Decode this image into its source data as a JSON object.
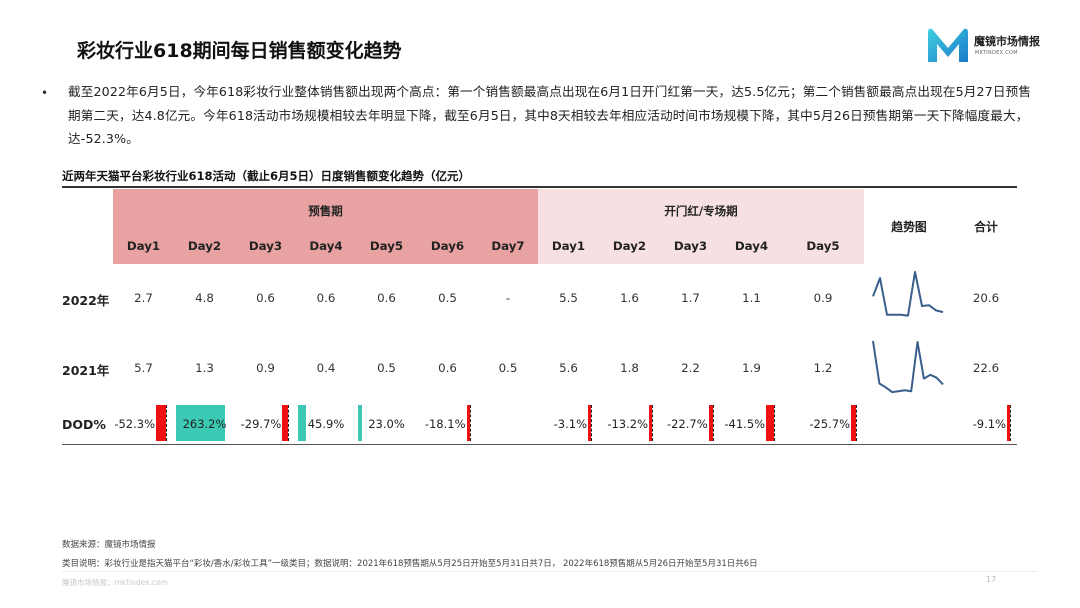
{
  "page": {
    "title": "彩妆行业618期间每日销售额变化趋势",
    "logo_name": "魔镜市场情报",
    "logo_url": "MKTINDEX.COM",
    "bullet": "截至2022年6月5日，今年618彩妆行业整体销售额出现两个高点：第一个销售额最高点出现在6月1日开门红第一天，达5.5亿元；第二个销售额最高点出现在5月27日预售期第二天，达4.8亿元。今年618活动市场规模相较去年明显下降，截至6月5日，其中8天相较去年相应活动时间市场规模下降，其中5月26日预售期第一天下降幅度最大，达-52.3%。",
    "source": "数据来源：魔镜市场情报",
    "note": "类目说明：彩妆行业是指天猫平台“彩妆/香水/彩妆工具”一级类目；数据说明：2021年618预售期从5月25日开始至5月31日共7日， 2022年618预售期从5月26日开始至5月31日共6日",
    "watermark": "魔镜市场情报：mktindex.com",
    "page_number": "17"
  },
  "colors": {
    "presale_band": "#e8a2a2",
    "opening_band": "#f7e0e1",
    "positive_bar": "#3cc9b4",
    "negative_bar": "#ee1111",
    "sparkline": "#3a5f8c"
  },
  "chart_data": {
    "type": "table",
    "title": "近两年天猫平台彩妆行业618活动（截止6月5日）日度销售额变化趋势（亿元）",
    "groups": [
      {
        "label": "预售期",
        "days": [
          "Day1",
          "Day2",
          "Day3",
          "Day4",
          "Day5",
          "Day6",
          "Day7"
        ]
      },
      {
        "label": "开门红/专场期",
        "days": [
          "Day1",
          "Day2",
          "Day3",
          "Day4",
          "Day5"
        ]
      }
    ],
    "trend_header": "趋势图",
    "total_header": "合计",
    "rows": [
      {
        "label": "2022年",
        "values": [
          "2.7",
          "4.8",
          "0.6",
          "0.6",
          "0.6",
          "0.5",
          "-",
          "5.5",
          "1.6",
          "1.7",
          "1.1",
          "0.9"
        ],
        "total": "20.6",
        "series": [
          2.7,
          4.8,
          0.6,
          0.6,
          0.6,
          0.5,
          5.5,
          1.6,
          1.7,
          1.1,
          0.9
        ]
      },
      {
        "label": "2021年",
        "values": [
          "5.7",
          "1.3",
          "0.9",
          "0.4",
          "0.5",
          "0.6",
          "0.5",
          "5.6",
          "1.8",
          "2.2",
          "1.9",
          "1.2"
        ],
        "total": "22.6",
        "series": [
          5.7,
          1.3,
          0.9,
          0.4,
          0.5,
          0.6,
          0.5,
          5.6,
          1.8,
          2.2,
          1.9,
          1.2
        ]
      }
    ],
    "dod": {
      "label": "DOD%",
      "values": [
        -52.3,
        263.2,
        -29.7,
        45.9,
        23.0,
        -18.1,
        null,
        -3.1,
        -13.2,
        -22.7,
        -41.5,
        -25.7
      ],
      "labels": [
        "-52.3%",
        "263.2%",
        "-29.7%",
        "45.9%",
        "23.0%",
        "-18.1%",
        "",
        "-3.1%",
        "-13.2%",
        "-22.7%",
        "-41.5%",
        "-25.7%"
      ],
      "total": "-9.1%"
    }
  }
}
